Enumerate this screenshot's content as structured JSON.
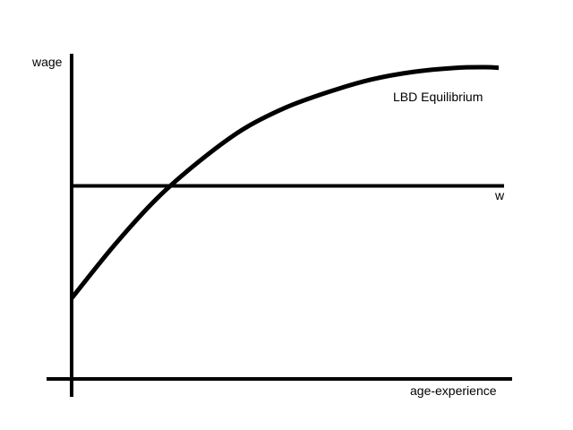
{
  "chart_data": {
    "type": "line",
    "title": "",
    "xlabel": "age-experience",
    "ylabel": "wage",
    "grid": false,
    "legend": "none",
    "xlim": [
      0,
      100
    ],
    "ylim": [
      0,
      100
    ],
    "series": [
      {
        "name": "LBD Equilibrium",
        "x": [
          0,
          10,
          20,
          30,
          40,
          50,
          60,
          70,
          80,
          90,
          97,
          100
        ],
        "y": [
          26,
          43,
          58,
          70,
          80,
          87,
          92,
          96,
          98.5,
          99.8,
          100,
          99.8
        ]
      },
      {
        "name": "w",
        "x": [
          0,
          100
        ],
        "y": [
          62,
          62
        ]
      }
    ],
    "line_color": "#000000"
  }
}
